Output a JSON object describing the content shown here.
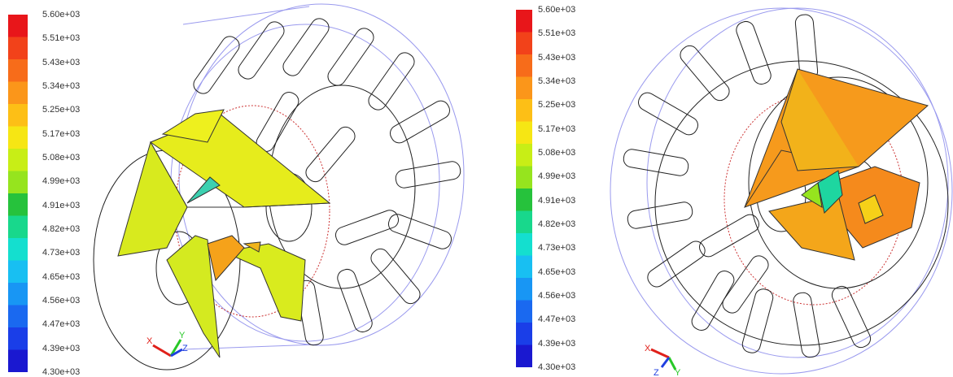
{
  "colorbar": {
    "labels": [
      "5.60e+03",
      "5.51e+03",
      "5.43e+03",
      "5.34e+03",
      "5.25e+03",
      "5.17e+03",
      "5.08e+03",
      "4.99e+03",
      "4.91e+03",
      "4.82e+03",
      "4.73e+03",
      "4.65e+03",
      "4.56e+03",
      "4.47e+03",
      "4.39e+03",
      "4.30e+03"
    ],
    "colors": [
      "#e8161a",
      "#f2421a",
      "#f76c1a",
      "#fb961a",
      "#fdbf16",
      "#f6e614",
      "#c8ee16",
      "#96e41e",
      "#26c23c",
      "#18d88c",
      "#14dfcf",
      "#18bff2",
      "#1896f4",
      "#1a69f0",
      "#1a3ee8",
      "#1a18d0"
    ]
  },
  "panels": [
    {
      "id": "left",
      "axes": {
        "x": "X",
        "y": "Y",
        "z": "Z"
      }
    },
    {
      "id": "right",
      "axes": {
        "x": "X",
        "y": "Y",
        "z": "Z"
      }
    }
  ],
  "colors": {
    "case_outline": "#9a9aee",
    "geometry_outline": "#222222",
    "interface_outline": "#cc3333",
    "axis_x": "#e0201a",
    "axis_y": "#28c828",
    "axis_z": "#2040e0"
  }
}
